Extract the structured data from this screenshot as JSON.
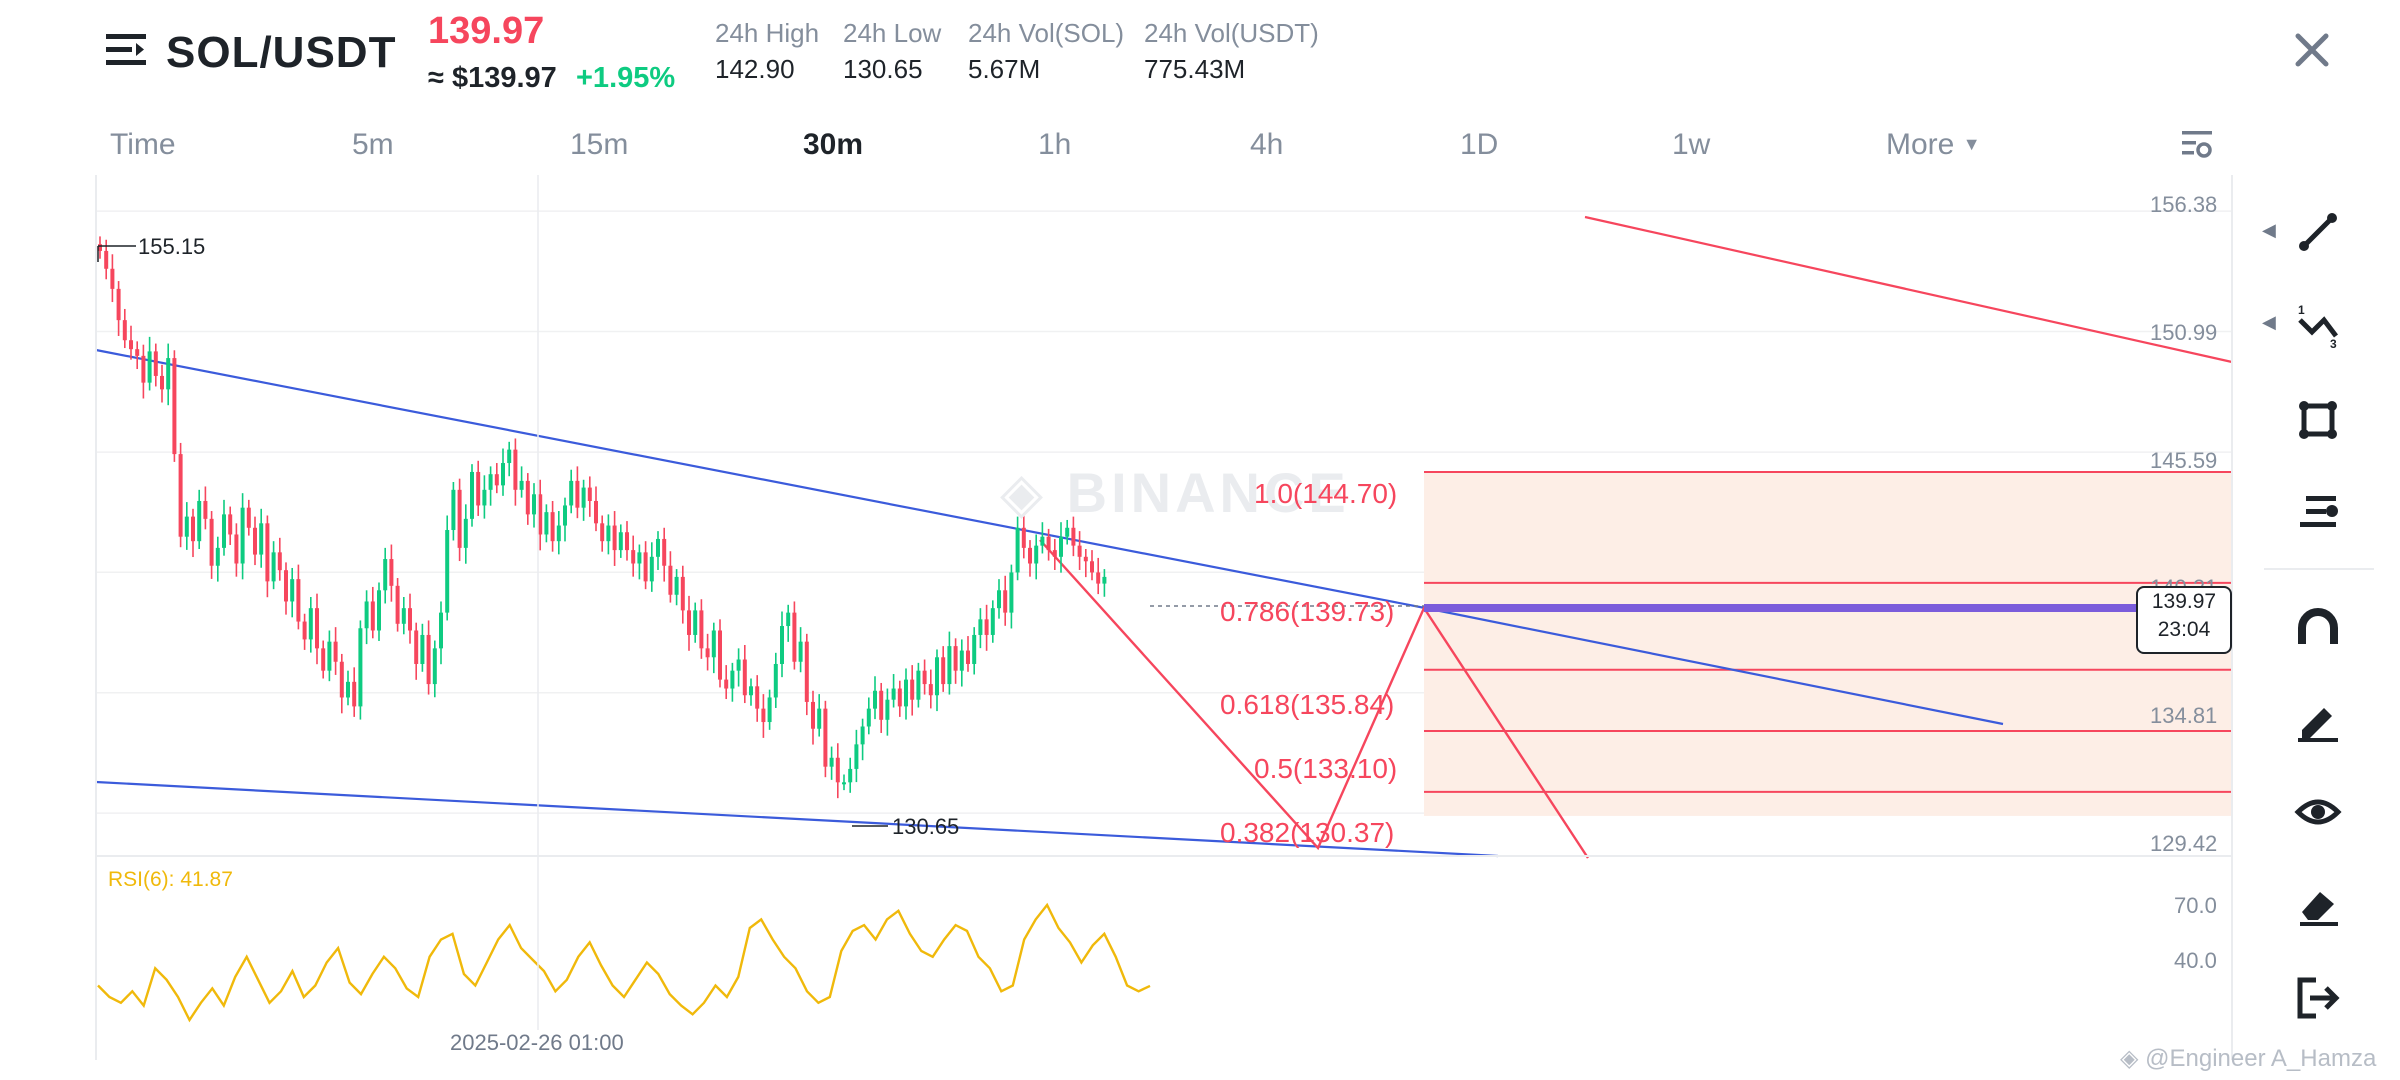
{
  "header": {
    "pair": "SOL/USDT",
    "price": "139.97",
    "price_usd": "≈ $139.97",
    "change": "+1.95%",
    "stats": [
      {
        "label": "24h High",
        "value": "142.90"
      },
      {
        "label": "24h Low",
        "value": "130.65"
      },
      {
        "label": "24h Vol(SOL)",
        "value": "5.67M"
      },
      {
        "label": "24h Vol(USDT)",
        "value": "775.43M"
      }
    ]
  },
  "timeframes": {
    "time": "Time",
    "m5": "5m",
    "m15": "15m",
    "m30": "30m",
    "h1": "1h",
    "h4": "4h",
    "d1": "1D",
    "w1": "1w",
    "more": "More"
  },
  "chart": {
    "price_axis": [
      "156.38",
      "150.99",
      "145.59",
      "140.21",
      "134.81",
      "129.42"
    ],
    "rsi_axis": [
      "70.0",
      "40.0"
    ],
    "current_price": "139.97",
    "countdown": "23:04",
    "high_label": "155.15",
    "low_label": "130.65",
    "date_label": "2025-02-26 01:00",
    "rsi_label": "RSI(6): 41.87",
    "watermark": "BINANCE",
    "fib_levels": [
      {
        "label": "1.0(144.70)",
        "price": 144.7
      },
      {
        "label": "0.786(139.73)",
        "price": 139.73
      },
      {
        "label": "0.618(135.84)",
        "price": 135.84
      },
      {
        "label": "0.5(133.10)",
        "price": 133.1
      },
      {
        "label": "0.382(130.37)",
        "price": 130.37
      }
    ]
  },
  "chart_data": {
    "type": "candlestick",
    "title": "SOL/USDT 30m",
    "ylim": [
      127.5,
      158.0
    ],
    "closes": [
      154.6,
      153.8,
      152.9,
      151.5,
      150.6,
      150.2,
      149.9,
      148.7,
      150.1,
      149.0,
      148.4,
      149.8,
      145.5,
      141.8,
      142.7,
      141.6,
      143.4,
      142.6,
      140.5,
      141.3,
      142.8,
      141.9,
      140.6,
      143.1,
      142.2,
      141.0,
      142.4,
      139.8,
      141.1,
      140.3,
      138.9,
      139.9,
      138.0,
      137.2,
      138.6,
      136.8,
      135.8,
      137.1,
      136.2,
      134.6,
      135.3,
      134.2,
      137.7,
      138.9,
      137.6,
      139.4,
      140.8,
      139.6,
      137.9,
      138.6,
      137.6,
      136.1,
      137.4,
      135.2,
      136.8,
      138.4,
      142.1,
      143.9,
      141.3,
      142.6,
      144.7,
      143.2,
      143.9,
      144.6,
      144.1,
      145.1,
      145.7,
      143.9,
      144.3,
      142.8,
      143.7,
      141.9,
      142.9,
      141.6,
      142.3,
      143.2,
      144.3,
      143.1,
      144.0,
      143.4,
      142.4,
      141.6,
      142.3,
      141.2,
      142.0,
      141.2,
      140.6,
      141.1,
      139.8,
      140.9,
      141.7,
      140.5,
      139.2,
      140.0,
      138.5,
      137.4,
      138.5,
      136.8,
      136.4,
      137.6,
      135.4,
      135.0,
      135.8,
      136.3,
      134.7,
      135.1,
      134.1,
      133.5,
      134.6,
      136.1,
      137.8,
      138.4,
      136.2,
      137.1,
      134.4,
      133.2,
      134.1,
      131.5,
      131.9,
      130.8,
      130.8,
      131.4,
      132.5,
      133.3,
      134.1,
      134.9,
      133.6,
      134.5,
      135.0,
      134.2,
      135.4,
      134.5,
      135.8,
      135.2,
      134.7,
      136.4,
      135.2,
      136.9,
      135.8,
      136.7,
      136.1,
      137.4,
      138.1,
      137.4,
      138.6,
      139.4,
      138.4,
      140.2,
      142.2,
      141.3,
      140.6,
      141.4,
      141.8,
      141.2,
      140.9,
      141.8,
      142.2,
      141.4,
      140.9,
      140.7,
      140.2,
      139.7,
      140.0
    ],
    "rsi": [
      42,
      38,
      36,
      40,
      35,
      48,
      44,
      38,
      30,
      36,
      41,
      35,
      45,
      52,
      44,
      36,
      40,
      47,
      38,
      42,
      50,
      55,
      43,
      39,
      46,
      52,
      48,
      41,
      38,
      52,
      58,
      60,
      46,
      42,
      50,
      58,
      63,
      55,
      51,
      47,
      40,
      44,
      52,
      57,
      49,
      42,
      38,
      44,
      50,
      46,
      39,
      35,
      32,
      36,
      42,
      38,
      45,
      62,
      65,
      58,
      52,
      48,
      40,
      36,
      38,
      54,
      61,
      63,
      58,
      65,
      68,
      60,
      54,
      52,
      58,
      63,
      61,
      52,
      48,
      40,
      42,
      58,
      65,
      70,
      62,
      57,
      50,
      56,
      60,
      52,
      42,
      40,
      41.87
    ],
    "fib_levels": [
      144.7,
      139.73,
      135.84,
      133.1,
      130.37
    ]
  },
  "toolbar": [
    {
      "icon": "trend-line-icon"
    },
    {
      "icon": "multi-line-icon"
    },
    {
      "icon": "rectangle-icon"
    },
    {
      "icon": "fib-tool-icon"
    },
    {
      "icon": "magnet-icon"
    },
    {
      "icon": "pencil-icon"
    },
    {
      "icon": "eye-icon"
    },
    {
      "icon": "eraser-icon"
    },
    {
      "icon": "exit-icon"
    }
  ],
  "footer": {
    "credit": "@Engineer A_Hamza"
  }
}
